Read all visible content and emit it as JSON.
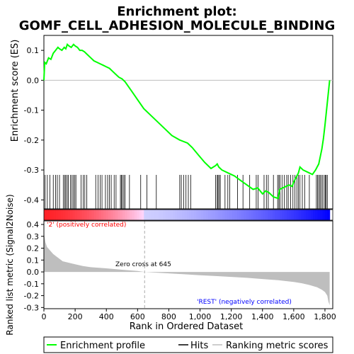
{
  "title_line1": "Enrichment plot:",
  "title_line2": "GOMF_CELL_ADHESION_MOLECULE_BINDING",
  "chart_data": [
    {
      "type": "line",
      "panel": "enrichment",
      "ylabel": "Enrichment score (ES)",
      "xlim": [
        0,
        1850
      ],
      "ylim": [
        -0.43,
        0.15
      ],
      "yticks": [
        0.1,
        0.0,
        -0.1,
        -0.2,
        -0.3,
        -0.4
      ],
      "yticklabels": [
        "0.1",
        "0.0",
        "-0.1",
        "-0.2",
        "-0.3",
        "-0.4"
      ],
      "grid": false,
      "series": [
        {
          "name": "Enrichment profile",
          "color": "#00ff00",
          "x": [
            0,
            5,
            15,
            30,
            45,
            60,
            75,
            90,
            100,
            115,
            130,
            140,
            150,
            160,
            175,
            190,
            200,
            215,
            230,
            245,
            260,
            280,
            300,
            320,
            340,
            360,
            380,
            400,
            420,
            440,
            460,
            480,
            500,
            520,
            560,
            600,
            640,
            700,
            760,
            820,
            870,
            920,
            950,
            990,
            1030,
            1070,
            1100,
            1110,
            1120,
            1140,
            1180,
            1220,
            1260,
            1300,
            1340,
            1370,
            1400,
            1420,
            1440,
            1470,
            1500,
            1510,
            1530,
            1550,
            1570,
            1590,
            1600,
            1610,
            1620,
            1630,
            1640,
            1660,
            1680,
            1700,
            1720,
            1740,
            1750,
            1760,
            1770,
            1780,
            1790,
            1800,
            1810,
            1820,
            1830
          ],
          "values": [
            0.0,
            0.06,
            0.055,
            0.075,
            0.07,
            0.09,
            0.1,
            0.11,
            0.105,
            0.1,
            0.11,
            0.105,
            0.12,
            0.115,
            0.11,
            0.12,
            0.115,
            0.11,
            0.1,
            0.1,
            0.095,
            0.085,
            0.075,
            0.065,
            0.06,
            0.055,
            0.05,
            0.045,
            0.04,
            0.03,
            0.02,
            0.01,
            0.005,
            -0.005,
            -0.035,
            -0.065,
            -0.095,
            -0.125,
            -0.155,
            -0.185,
            -0.2,
            -0.21,
            -0.225,
            -0.25,
            -0.275,
            -0.295,
            -0.285,
            -0.28,
            -0.29,
            -0.3,
            -0.31,
            -0.32,
            -0.335,
            -0.35,
            -0.365,
            -0.36,
            -0.38,
            -0.37,
            -0.375,
            -0.39,
            -0.395,
            -0.365,
            -0.36,
            -0.355,
            -0.35,
            -0.355,
            -0.34,
            -0.33,
            -0.32,
            -0.31,
            -0.29,
            -0.3,
            -0.305,
            -0.31,
            -0.315,
            -0.3,
            -0.29,
            -0.28,
            -0.255,
            -0.23,
            -0.195,
            -0.15,
            -0.1,
            -0.05,
            0.0
          ]
        }
      ],
      "hits": [
        8,
        22,
        38,
        60,
        75,
        86,
        100,
        124,
        133,
        140,
        149,
        157,
        170,
        180,
        189,
        198,
        205,
        238,
        252,
        262,
        275,
        332,
        347,
        360,
        372,
        394,
        408,
        419,
        431,
        450,
        462,
        490,
        497,
        503,
        512,
        520,
        548,
        620,
        660,
        720,
        870,
        880,
        895,
        910,
        925,
        940,
        1100,
        1110,
        1115,
        1122,
        1130,
        1160,
        1178,
        1190,
        1240,
        1275,
        1318,
        1360,
        1372,
        1410,
        1425,
        1437,
        1470,
        1497,
        1505,
        1512,
        1525,
        1540,
        1555,
        1565,
        1580,
        1595,
        1608,
        1620,
        1630,
        1640,
        1655,
        1670,
        1700,
        1745,
        1752,
        1760,
        1768,
        1775,
        1785,
        1795,
        1802,
        1808,
        1815
      ]
    },
    {
      "type": "area",
      "panel": "ranked-metric",
      "xlabel": "Rank in Ordered Dataset",
      "ylabel": "Ranked list metric (Signal2Noise)",
      "xlim": [
        0,
        1850
      ],
      "ylim": [
        -0.31,
        0.43
      ],
      "yticks": [
        0.4,
        0.3,
        0.2,
        0.1,
        0.0,
        -0.1,
        -0.2,
        -0.3
      ],
      "yticklabels": [
        "0.4",
        "0.3",
        "0.2",
        "0.1",
        "0.0",
        "-0.1",
        "-0.2",
        "-0.3"
      ],
      "xticks": [
        0,
        200,
        400,
        600,
        800,
        1000,
        1200,
        1400,
        1600,
        1800
      ],
      "xticklabels": [
        "0",
        "200",
        "400",
        "600",
        "800",
        "1,000",
        "1,200",
        "1,400",
        "1,600",
        "1,800"
      ],
      "fill_color": "#bebebe",
      "x": [
        0,
        10,
        20,
        40,
        60,
        80,
        100,
        120,
        150,
        200,
        250,
        300,
        400,
        500,
        600,
        645,
        700,
        800,
        900,
        1000,
        1100,
        1200,
        1300,
        1400,
        1500,
        1600,
        1650,
        1700,
        1750,
        1780,
        1800,
        1815,
        1822,
        1830
      ],
      "values": [
        0.33,
        0.25,
        0.21,
        0.18,
        0.15,
        0.13,
        0.11,
        0.09,
        0.08,
        0.065,
        0.05,
        0.04,
        0.03,
        0.018,
        0.008,
        0.0,
        -0.005,
        -0.012,
        -0.02,
        -0.028,
        -0.035,
        -0.042,
        -0.05,
        -0.06,
        -0.07,
        -0.085,
        -0.095,
        -0.11,
        -0.13,
        -0.15,
        -0.17,
        -0.2,
        -0.25,
        -0.28
      ],
      "zero_cross": 645,
      "annotations": {
        "positive": "'2' (positively correlated)",
        "zero_cross": "Zero cross at 645",
        "negative": "'REST' (negatively correlated)"
      }
    }
  ],
  "legend": {
    "placement": "bottom",
    "items": [
      {
        "label": "Enrichment profile",
        "color": "#00ff00"
      },
      {
        "label": "Hits",
        "color": "#000000"
      },
      {
        "label": "Ranking metric scores",
        "color": "#bebebe"
      }
    ]
  },
  "colors": {
    "positive_text": "#ff0000",
    "negative_text": "#0000ff",
    "heat_positive": "#ff0000",
    "heat_negative": "#0000ff"
  }
}
